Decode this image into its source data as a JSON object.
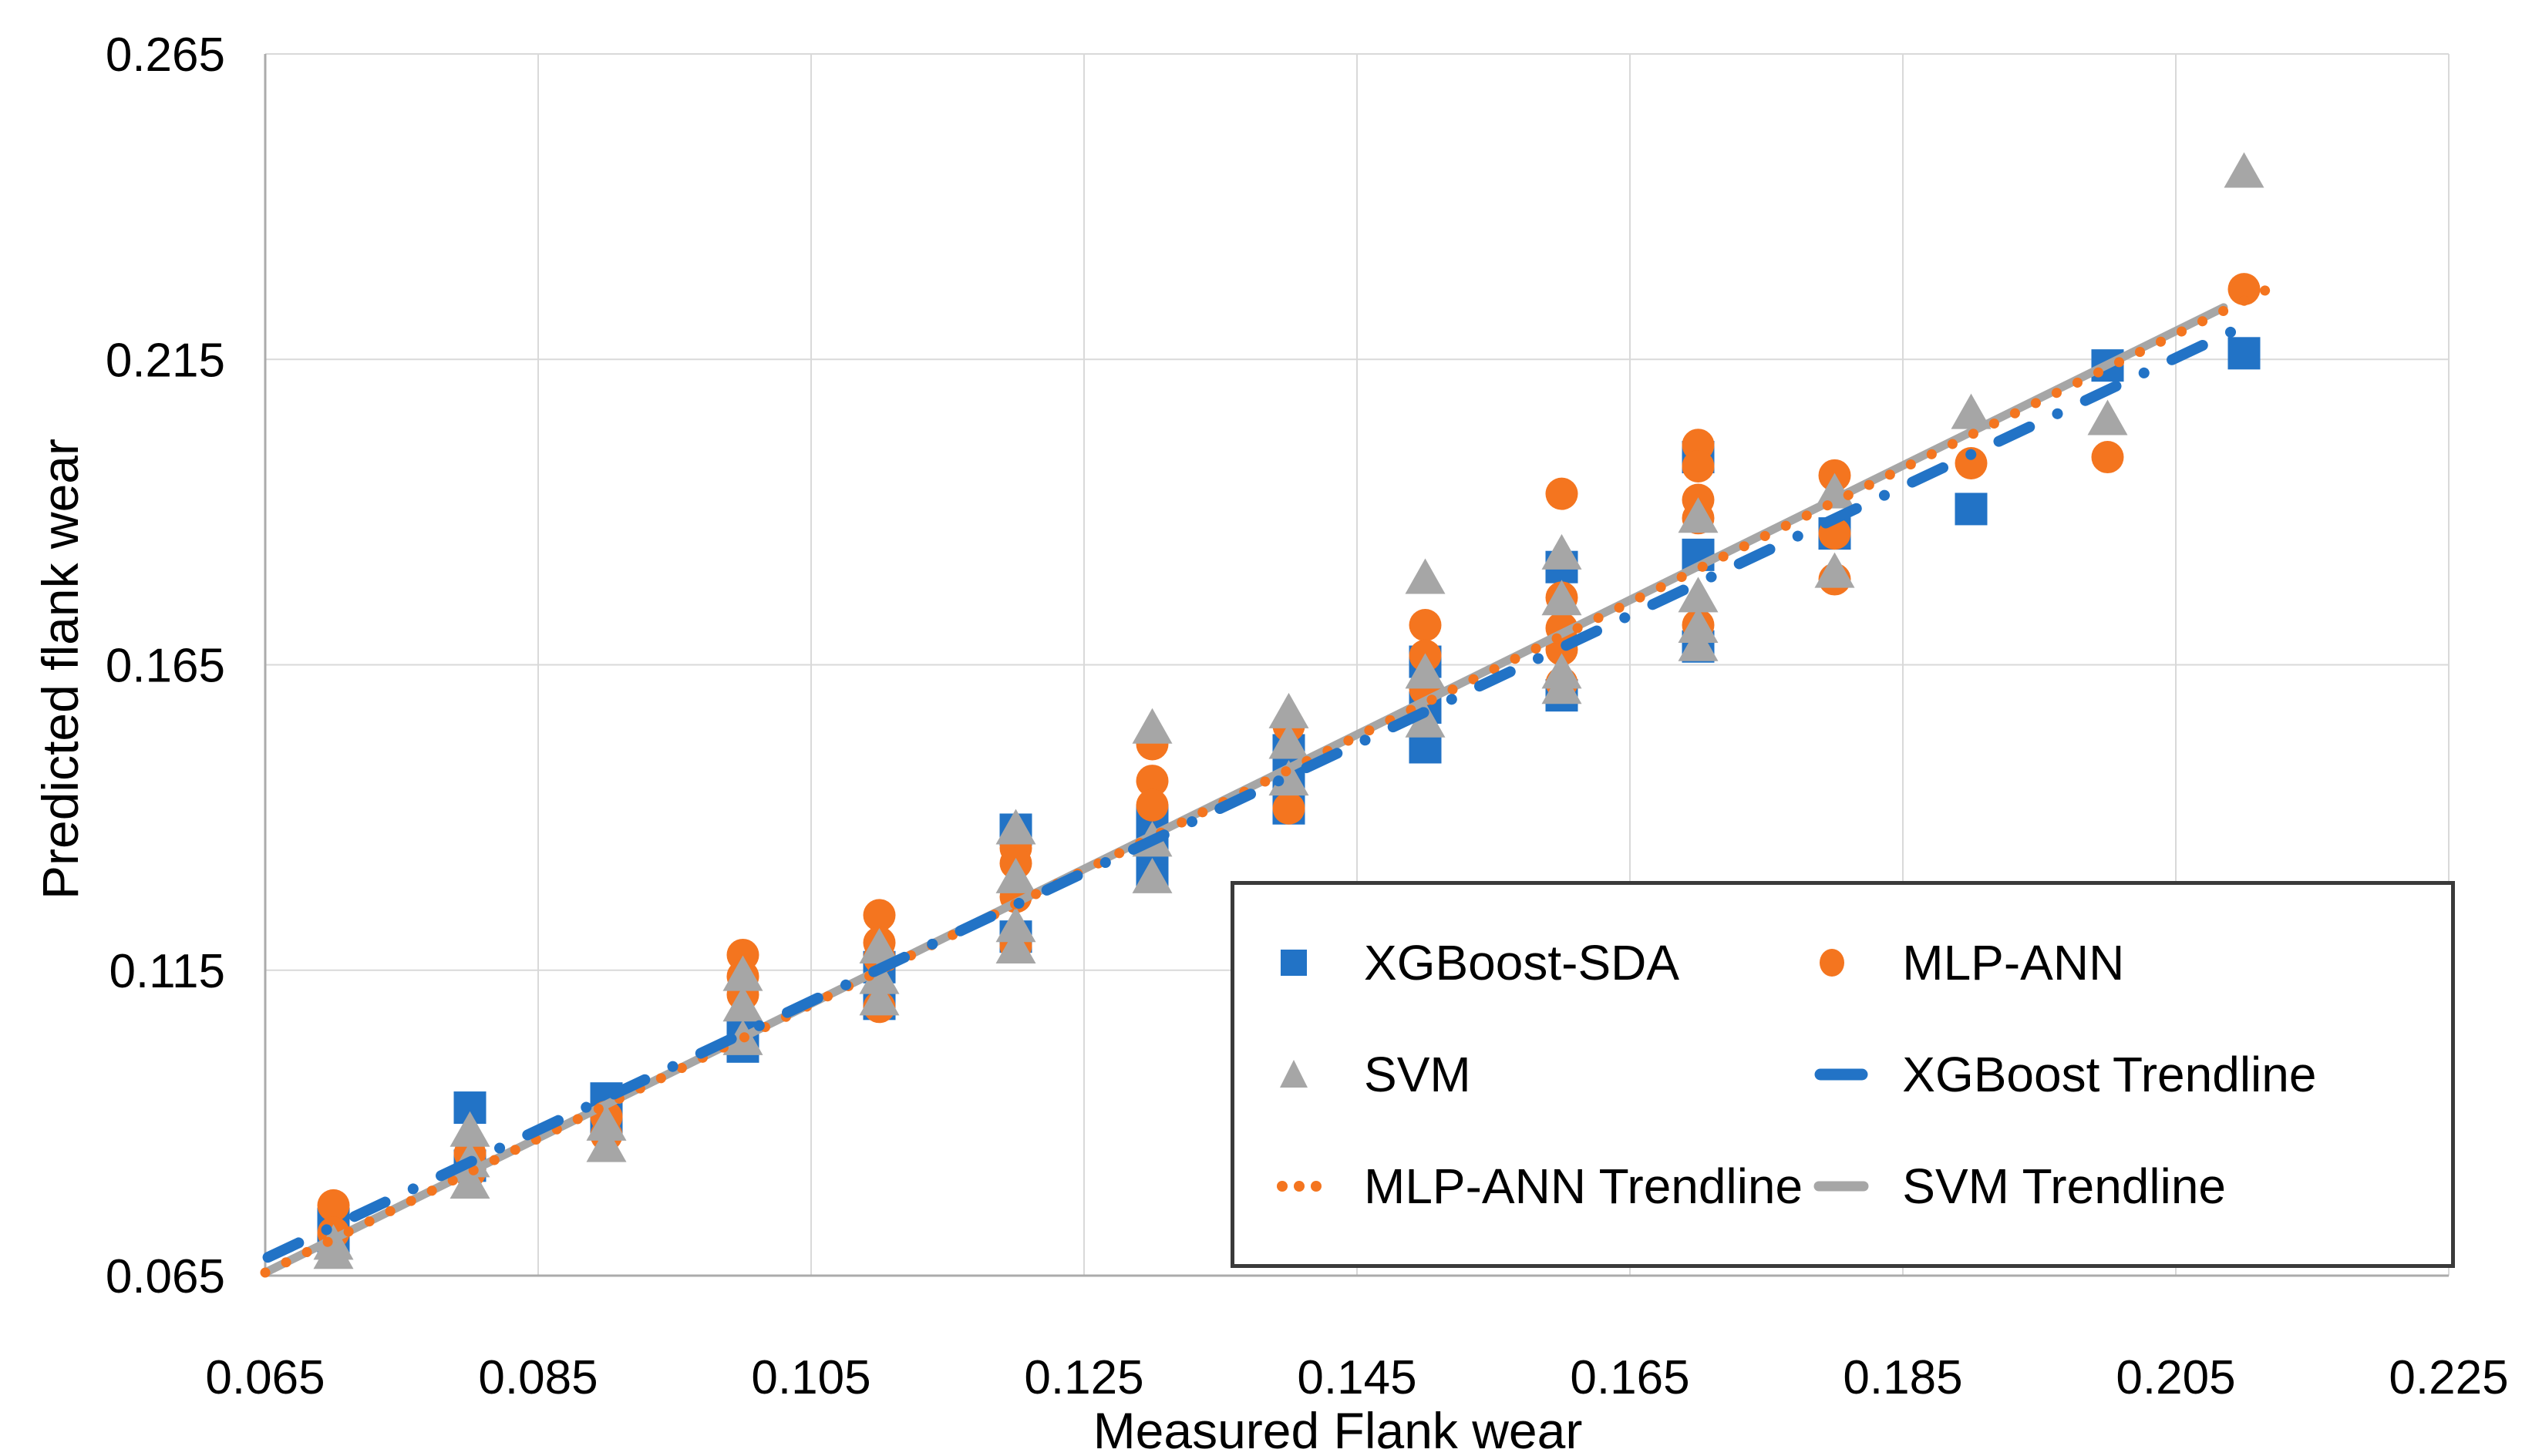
{
  "chart_data": {
    "type": "scatter",
    "title": "",
    "xlabel": "Measured Flank wear",
    "ylabel": "Predicted flank wear",
    "xlim": [
      0.065,
      0.225
    ],
    "ylim": [
      0.065,
      0.265
    ],
    "xticks": [
      0.065,
      0.085,
      0.105,
      0.125,
      0.145,
      0.165,
      0.185,
      0.205,
      0.225
    ],
    "yticks": [
      0.065,
      0.115,
      0.165,
      0.215,
      0.265
    ],
    "tick_decimals": 3,
    "grid": true,
    "colors": {
      "blue": "#2273C6",
      "orange": "#F4751F",
      "gray": "#A6A6A6",
      "gridline": "#D9D9D9",
      "axis_line": "#ABABAB",
      "text": "#000000",
      "legend_border": "#3A3A3A"
    },
    "series": [
      {
        "name": "XGBoost-SDA",
        "marker": "square",
        "color_key": "blue",
        "points": [
          [
            0.07,
            0.071
          ],
          [
            0.07,
            0.0735
          ],
          [
            0.08,
            0.0925
          ],
          [
            0.08,
            0.083
          ],
          [
            0.09,
            0.094
          ],
          [
            0.09,
            0.0905
          ],
          [
            0.1,
            0.1045
          ],
          [
            0.1,
            0.1025
          ],
          [
            0.11,
            0.1155
          ],
          [
            0.11,
            0.1095
          ],
          [
            0.12,
            0.138
          ],
          [
            0.12,
            0.1205
          ],
          [
            0.13,
            0.1305
          ],
          [
            0.13,
            0.135
          ],
          [
            0.13,
            0.1395
          ],
          [
            0.14,
            0.1415
          ],
          [
            0.14,
            0.146
          ],
          [
            0.14,
            0.151
          ],
          [
            0.15,
            0.1655
          ],
          [
            0.15,
            0.158
          ],
          [
            0.15,
            0.1515
          ],
          [
            0.16,
            0.181
          ],
          [
            0.16,
            0.16
          ],
          [
            0.17,
            0.199
          ],
          [
            0.17,
            0.183
          ],
          [
            0.17,
            0.168
          ],
          [
            0.18,
            0.1865
          ],
          [
            0.19,
            0.1905
          ],
          [
            0.2,
            0.214
          ],
          [
            0.21,
            0.216
          ]
        ]
      },
      {
        "name": "MLP-ANN",
        "marker": "circle",
        "color_key": "orange",
        "points": [
          [
            0.07,
            0.0765
          ],
          [
            0.07,
            0.072
          ],
          [
            0.08,
            0.085
          ],
          [
            0.08,
            0.082
          ],
          [
            0.09,
            0.091
          ],
          [
            0.09,
            0.088
          ],
          [
            0.1,
            0.1175
          ],
          [
            0.1,
            0.114
          ],
          [
            0.1,
            0.111
          ],
          [
            0.11,
            0.124
          ],
          [
            0.11,
            0.1195
          ],
          [
            0.11,
            0.117
          ],
          [
            0.11,
            0.109
          ],
          [
            0.12,
            0.135
          ],
          [
            0.12,
            0.1325
          ],
          [
            0.12,
            0.127
          ],
          [
            0.12,
            0.119
          ],
          [
            0.13,
            0.152
          ],
          [
            0.13,
            0.146
          ],
          [
            0.13,
            0.142
          ],
          [
            0.14,
            0.155
          ],
          [
            0.14,
            0.1415
          ],
          [
            0.15,
            0.1715
          ],
          [
            0.15,
            0.1665
          ],
          [
            0.15,
            0.161
          ],
          [
            0.16,
            0.193
          ],
          [
            0.16,
            0.176
          ],
          [
            0.16,
            0.171
          ],
          [
            0.16,
            0.1675
          ],
          [
            0.16,
            0.162
          ],
          [
            0.17,
            0.201
          ],
          [
            0.17,
            0.1975
          ],
          [
            0.17,
            0.192
          ],
          [
            0.17,
            0.189
          ],
          [
            0.17,
            0.1715
          ],
          [
            0.18,
            0.196
          ],
          [
            0.18,
            0.1865
          ],
          [
            0.18,
            0.179
          ],
          [
            0.19,
            0.198
          ],
          [
            0.2,
            0.199
          ],
          [
            0.21,
            0.2265
          ]
        ]
      },
      {
        "name": "SVM",
        "marker": "triangle",
        "color_key": "gray",
        "points": [
          [
            0.07,
            0.0685
          ],
          [
            0.07,
            0.07
          ],
          [
            0.08,
            0.0885
          ],
          [
            0.08,
            0.0835
          ],
          [
            0.08,
            0.08
          ],
          [
            0.09,
            0.0895
          ],
          [
            0.09,
            0.086
          ],
          [
            0.1,
            0.114
          ],
          [
            0.1,
            0.109
          ],
          [
            0.1,
            0.1035
          ],
          [
            0.11,
            0.1185
          ],
          [
            0.11,
            0.1135
          ],
          [
            0.11,
            0.11
          ],
          [
            0.12,
            0.138
          ],
          [
            0.12,
            0.13
          ],
          [
            0.12,
            0.122
          ],
          [
            0.12,
            0.1185
          ],
          [
            0.13,
            0.1545
          ],
          [
            0.13,
            0.136
          ],
          [
            0.13,
            0.13
          ],
          [
            0.14,
            0.157
          ],
          [
            0.14,
            0.152
          ],
          [
            0.14,
            0.146
          ],
          [
            0.15,
            0.179
          ],
          [
            0.15,
            0.1635
          ],
          [
            0.15,
            0.1555
          ],
          [
            0.16,
            0.183
          ],
          [
            0.16,
            0.1755
          ],
          [
            0.16,
            0.1635
          ],
          [
            0.16,
            0.161
          ],
          [
            0.17,
            0.189
          ],
          [
            0.17,
            0.176
          ],
          [
            0.17,
            0.171
          ],
          [
            0.17,
            0.168
          ],
          [
            0.18,
            0.193
          ],
          [
            0.18,
            0.18
          ],
          [
            0.19,
            0.206
          ],
          [
            0.2,
            0.205
          ],
          [
            0.21,
            0.2455
          ]
        ]
      }
    ],
    "trendlines": [
      {
        "name": "SVM Trendline",
        "color_key": "gray",
        "style": "solid",
        "width": 11,
        "x1": 0.065,
        "y1": 0.0655,
        "x2": 0.2085,
        "y2": 0.2235
      },
      {
        "name": "MLP-ANN Trendline",
        "color_key": "orange",
        "style": "dotted",
        "width": 13,
        "x1": 0.065,
        "y1": 0.0655,
        "x2": 0.2122,
        "y2": 0.227
      },
      {
        "name": "XGBoost Trendline",
        "color_key": "blue",
        "style": "dash-dot",
        "width": 14,
        "x1": 0.0652,
        "y1": 0.068,
        "x2": 0.21,
        "y2": 0.2205
      }
    ],
    "legend": {
      "position": "inside-bottom-right",
      "items": [
        {
          "label": "XGBoost-SDA",
          "swatch": "square",
          "color_key": "blue"
        },
        {
          "label": "MLP-ANN",
          "swatch": "circle",
          "color_key": "orange"
        },
        {
          "label": "SVM",
          "swatch": "triangle",
          "color_key": "gray"
        },
        {
          "label": "XGBoost Trendline",
          "swatch": "dash",
          "color_key": "blue"
        },
        {
          "label": "MLP-ANN Trendline",
          "swatch": "dots",
          "color_key": "orange"
        },
        {
          "label": "SVM Trendline",
          "swatch": "line",
          "color_key": "gray"
        }
      ]
    }
  }
}
